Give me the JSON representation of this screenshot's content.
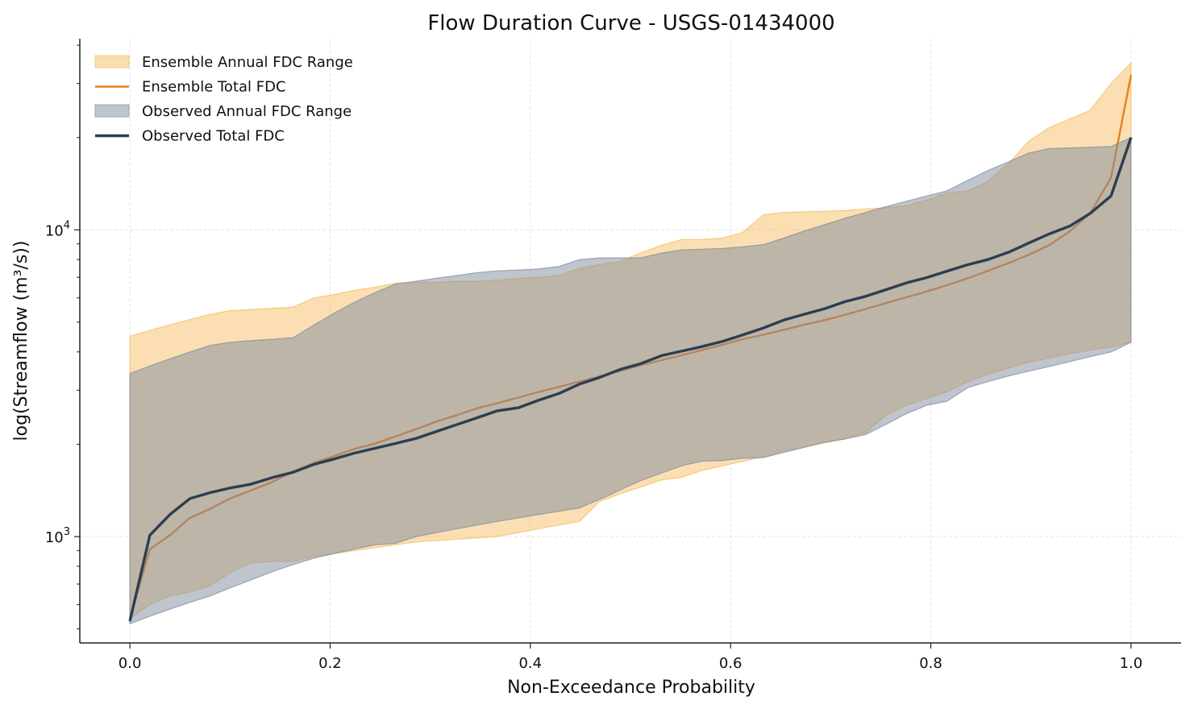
{
  "chart_data": {
    "type": "area",
    "title": "Flow Duration Curve - USGS-01434000",
    "xlabel": "Non-Exceedance Probability",
    "ylabel": "log(Streamflow (m³/s))",
    "xlim": [
      -0.05,
      1.05
    ],
    "ylim": [
      450,
      42000
    ],
    "yscale": "log",
    "grid": true,
    "legend_position": "top-left",
    "x_ticks": [
      0.0,
      0.2,
      0.4,
      0.6,
      0.8,
      1.0
    ],
    "x_tick_labels": [
      "0.0",
      "0.2",
      "0.4",
      "0.6",
      "0.8",
      "1.0"
    ],
    "y_major_ticks": [
      {
        "value": 1000,
        "base": "10",
        "exp": "3"
      },
      {
        "value": 10000,
        "base": "10",
        "exp": "4"
      }
    ],
    "y_minor_ticks": [
      500,
      600,
      700,
      800,
      900,
      2000,
      3000,
      4000,
      5000,
      6000,
      7000,
      8000,
      9000,
      20000,
      30000,
      40000
    ],
    "series": [
      {
        "name": "Ensemble Annual FDC Range",
        "kind": "band",
        "color": "#f5b041",
        "opacity": 0.4,
        "x": [
          0.0,
          0.02,
          0.04,
          0.06,
          0.08,
          0.1,
          0.12,
          0.143,
          0.163,
          0.184,
          0.204,
          0.224,
          0.245,
          0.265,
          0.286,
          0.306,
          0.327,
          0.347,
          0.367,
          0.388,
          0.408,
          0.429,
          0.449,
          0.469,
          0.49,
          0.51,
          0.531,
          0.551,
          0.571,
          0.592,
          0.612,
          0.633,
          0.653,
          0.673,
          0.694,
          0.714,
          0.735,
          0.755,
          0.776,
          0.796,
          0.816,
          0.837,
          0.857,
          0.878,
          0.898,
          0.918,
          0.939,
          0.959,
          0.98,
          1.0
        ],
        "lower": [
          540,
          600,
          640,
          660,
          690,
          760,
          820,
          830,
          830,
          860,
          880,
          900,
          920,
          940,
          960,
          970,
          980,
          990,
          1000,
          1030,
          1060,
          1090,
          1120,
          1300,
          1380,
          1450,
          1530,
          1560,
          1640,
          1700,
          1760,
          1820,
          1900,
          1960,
          2020,
          2080,
          2180,
          2480,
          2680,
          2820,
          2960,
          3200,
          3380,
          3550,
          3700,
          3820,
          3950,
          4050,
          4150,
          4300
        ],
        "upper": [
          4500,
          4700,
          4900,
          5100,
          5300,
          5450,
          5500,
          5550,
          5600,
          6000,
          6150,
          6350,
          6500,
          6700,
          6750,
          6750,
          6800,
          6800,
          6850,
          6950,
          7000,
          7100,
          7500,
          7700,
          7900,
          8400,
          8900,
          9300,
          9300,
          9400,
          9800,
          11200,
          11400,
          11450,
          11500,
          11550,
          11700,
          11800,
          12000,
          12500,
          13200,
          13400,
          14400,
          16500,
          19500,
          21500,
          23000,
          24500,
          30000,
          35000
        ]
      },
      {
        "name": "Ensemble Total FDC",
        "kind": "line",
        "color": "#e67e22",
        "width": 2.4,
        "x": [
          0.0,
          0.02,
          0.04,
          0.06,
          0.08,
          0.1,
          0.12,
          0.143,
          0.163,
          0.184,
          0.204,
          0.224,
          0.245,
          0.265,
          0.286,
          0.306,
          0.327,
          0.347,
          0.367,
          0.388,
          0.408,
          0.429,
          0.449,
          0.469,
          0.49,
          0.51,
          0.531,
          0.551,
          0.571,
          0.592,
          0.612,
          0.633,
          0.653,
          0.673,
          0.694,
          0.714,
          0.735,
          0.755,
          0.776,
          0.796,
          0.816,
          0.837,
          0.857,
          0.878,
          0.898,
          0.918,
          0.939,
          0.959,
          0.98,
          1.0
        ],
        "values": [
          540,
          910,
          1010,
          1150,
          1230,
          1330,
          1410,
          1510,
          1630,
          1740,
          1830,
          1930,
          2010,
          2120,
          2240,
          2370,
          2490,
          2620,
          2720,
          2840,
          2960,
          3080,
          3200,
          3330,
          3470,
          3620,
          3760,
          3900,
          4050,
          4220,
          4400,
          4550,
          4720,
          4900,
          5080,
          5280,
          5520,
          5770,
          6030,
          6300,
          6600,
          6950,
          7350,
          7800,
          8300,
          8900,
          9900,
          11300,
          14800,
          32000
        ]
      },
      {
        "name": "Observed Annual FDC Range",
        "kind": "band",
        "color": "#7f8c9d",
        "opacity": 0.5,
        "x": [
          0.0,
          0.02,
          0.04,
          0.06,
          0.08,
          0.1,
          0.12,
          0.143,
          0.163,
          0.184,
          0.204,
          0.224,
          0.245,
          0.265,
          0.286,
          0.306,
          0.327,
          0.347,
          0.367,
          0.388,
          0.408,
          0.429,
          0.449,
          0.469,
          0.49,
          0.51,
          0.531,
          0.551,
          0.571,
          0.592,
          0.612,
          0.633,
          0.653,
          0.673,
          0.694,
          0.714,
          0.735,
          0.755,
          0.776,
          0.796,
          0.816,
          0.837,
          0.857,
          0.878,
          0.898,
          0.918,
          0.939,
          0.959,
          0.98,
          1.0
        ],
        "lower": [
          520,
          550,
          580,
          610,
          640,
          680,
          720,
          770,
          810,
          850,
          880,
          910,
          940,
          950,
          1000,
          1030,
          1060,
          1090,
          1120,
          1150,
          1180,
          1210,
          1240,
          1320,
          1420,
          1520,
          1610,
          1700,
          1760,
          1770,
          1800,
          1810,
          1880,
          1950,
          2030,
          2080,
          2150,
          2320,
          2520,
          2680,
          2760,
          3060,
          3200,
          3340,
          3460,
          3580,
          3720,
          3860,
          4000,
          4300
        ],
        "upper": [
          3400,
          3600,
          3800,
          4000,
          4200,
          4300,
          4350,
          4400,
          4450,
          4900,
          5350,
          5800,
          6250,
          6650,
          6800,
          6950,
          7100,
          7250,
          7350,
          7400,
          7450,
          7600,
          8000,
          8100,
          8100,
          8100,
          8400,
          8600,
          8650,
          8700,
          8800,
          8950,
          9400,
          9900,
          10400,
          10900,
          11400,
          11900,
          12400,
          12900,
          13400,
          14500,
          15600,
          16700,
          17800,
          18400,
          18500,
          18600,
          18700,
          20000
        ]
      },
      {
        "name": "Observed Total FDC",
        "kind": "line",
        "color": "#2c3e50",
        "width": 3.4,
        "x": [
          0.0,
          0.02,
          0.04,
          0.06,
          0.08,
          0.1,
          0.12,
          0.143,
          0.163,
          0.184,
          0.204,
          0.224,
          0.245,
          0.265,
          0.286,
          0.306,
          0.327,
          0.347,
          0.367,
          0.388,
          0.408,
          0.429,
          0.449,
          0.469,
          0.49,
          0.51,
          0.531,
          0.551,
          0.571,
          0.592,
          0.612,
          0.633,
          0.653,
          0.673,
          0.694,
          0.714,
          0.735,
          0.755,
          0.776,
          0.796,
          0.816,
          0.837,
          0.857,
          0.878,
          0.898,
          0.918,
          0.939,
          0.959,
          0.98,
          1.0
        ],
        "values": [
          530,
          1010,
          1180,
          1330,
          1390,
          1440,
          1480,
          1560,
          1620,
          1720,
          1790,
          1870,
          1940,
          2010,
          2090,
          2200,
          2320,
          2440,
          2570,
          2630,
          2780,
          2930,
          3140,
          3300,
          3510,
          3660,
          3890,
          4020,
          4160,
          4330,
          4540,
          4790,
          5080,
          5300,
          5530,
          5830,
          6070,
          6380,
          6720,
          6990,
          7330,
          7700,
          8000,
          8460,
          9060,
          9690,
          10300,
          11300,
          12900,
          20000
        ]
      }
    ]
  }
}
